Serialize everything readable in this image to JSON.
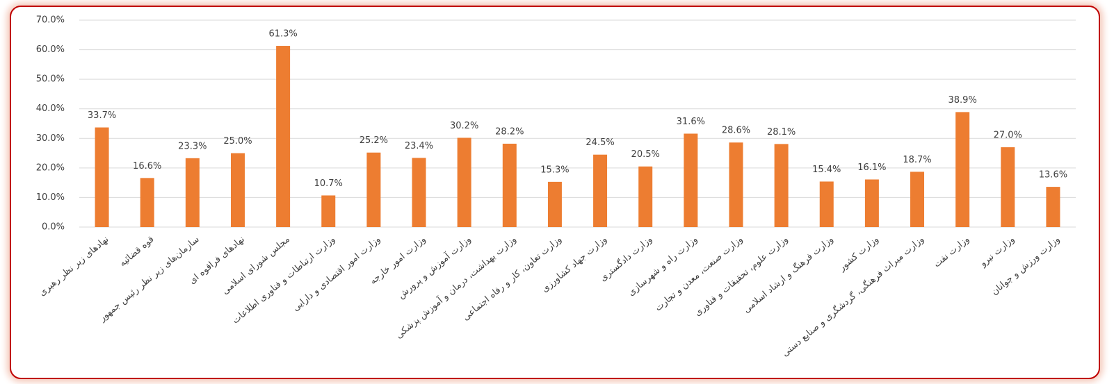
{
  "chart_data": {
    "type": "bar",
    "categories": [
      "نهادهای زیر نظر رهبری",
      "قوه قضائیه",
      "سازمان‌های زیر نظر رئیس جمهور",
      "نهادهای فراقوه ای",
      "مجلس شورای اسلامی",
      "وزارت ارتباطات و فناوری اطلاعات",
      "وزارت امور اقتصادی و دارایی",
      "وزارت امور خارجه",
      "وزارت آموزش و پرورش",
      "وزارت بهداشت، درمان و آموزش پزشکی",
      "وزارت تعاون، کار و رفاه اجتماعی",
      "وزارت جهاد کشاورزی",
      "وزارت دادگستری",
      "وزارت راه و شهرسازی",
      "وزارت صنعت، معدن و تجارت",
      "وزارت علوم، تحقیقات و فناوری",
      "وزارت فرهنگ و ارشاد اسلامی",
      "وزارت کشور",
      "وزارت میراث فرهنگی، گردشگری و صنایع دستی",
      "وزارت نفت",
      "وزارت نیرو",
      "وزارت ورزش و جوانان"
    ],
    "values": [
      33.7,
      16.6,
      23.3,
      25.0,
      61.3,
      10.7,
      25.2,
      23.4,
      30.2,
      28.2,
      15.3,
      24.5,
      20.5,
      31.6,
      28.6,
      28.1,
      15.4,
      16.1,
      18.7,
      38.9,
      27.0,
      13.6
    ],
    "value_labels": [
      "33.7%",
      "16.6%",
      "23.3%",
      "25.0%",
      "61.3%",
      "10.7%",
      "25.2%",
      "23.4%",
      "30.2%",
      "28.2%",
      "15.3%",
      "24.5%",
      "20.5%",
      "31.6%",
      "28.6%",
      "28.1%",
      "15.4%",
      "16.1%",
      "18.7%",
      "38.9%",
      "27.0%",
      "13.6%"
    ],
    "color": "#ed7d31",
    "ylim": [
      0,
      70
    ],
    "yticks": [
      {
        "value": 0,
        "label": "0.0%"
      },
      {
        "value": 10,
        "label": "10.0%"
      },
      {
        "value": 20,
        "label": "20.0%"
      },
      {
        "value": 30,
        "label": "30.0%"
      },
      {
        "value": 40,
        "label": "40.0%"
      },
      {
        "value": 50,
        "label": "50.0%"
      },
      {
        "value": 60,
        "label": "60.0%"
      },
      {
        "value": 70,
        "label": "70.0%"
      }
    ],
    "grid": true
  }
}
